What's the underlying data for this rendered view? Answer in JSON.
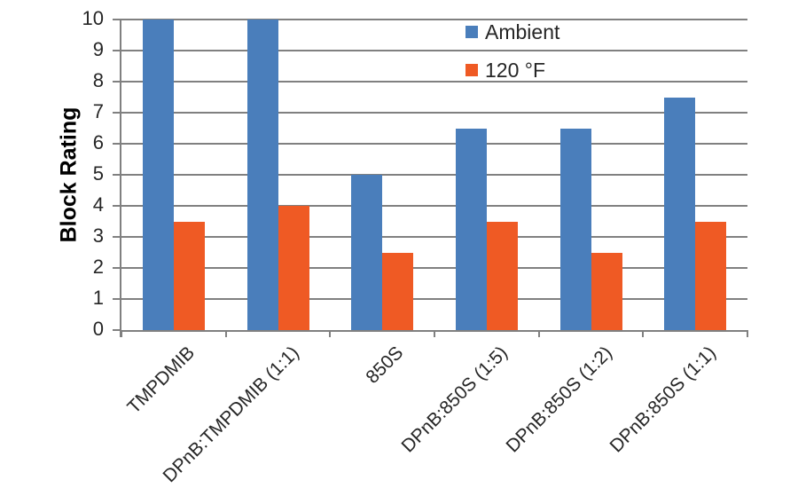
{
  "chart_data": {
    "type": "bar",
    "title": "",
    "xlabel": "",
    "ylabel": "Block Rating",
    "ylim": [
      0,
      10
    ],
    "ytick_step": 1,
    "yticks": [
      0,
      1,
      2,
      3,
      4,
      5,
      6,
      7,
      8,
      9,
      10
    ],
    "grid": true,
    "legend_position": "top-center",
    "categories": [
      "TMPDMIB",
      "DPnB:TMPDMIB (1:1)",
      "850S",
      "DPnB:850S (1:5)",
      "DPnB:850S (1:2)",
      "DPnB:850S (1:1)"
    ],
    "series": [
      {
        "name": "Ambient",
        "color": "#4A7EBB",
        "values": [
          10,
          10,
          5,
          6.5,
          6.5,
          7.5
        ]
      },
      {
        "name": "120 °F",
        "color": "#EF5A24",
        "values": [
          3.5,
          4,
          2.5,
          3.5,
          2.5,
          3.5
        ]
      }
    ],
    "colors": {
      "gridline": "#808080",
      "axis": "#808080",
      "tick_text": "#262626",
      "label_text": "#000000"
    }
  }
}
